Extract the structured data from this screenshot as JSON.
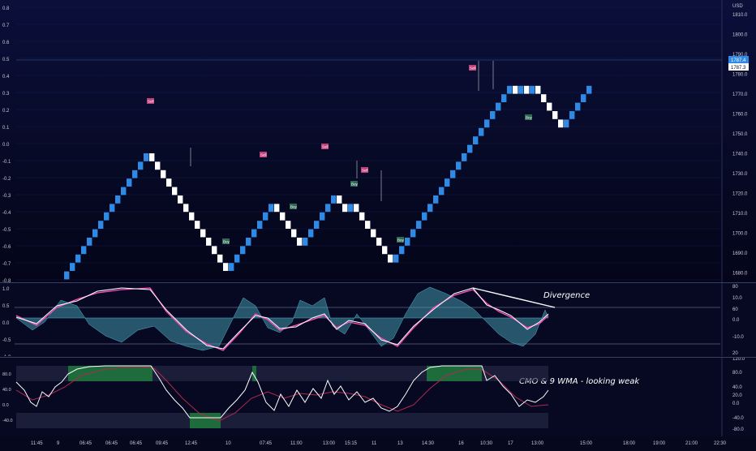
{
  "main": {
    "left_axis": [
      "0.8",
      "0.7",
      "0.6",
      "0.5",
      "0.4",
      "0.3",
      "0.2",
      "0.1",
      "0.0",
      "-0.1",
      "-0.2",
      "-0.3",
      "-0.4",
      "-0.5",
      "-0.6",
      "-0.7",
      "-0.8"
    ],
    "right_axis": [
      "USD",
      "1810.0",
      "1800.0",
      "1790.0",
      "1780.0",
      "1770.0",
      "1760.0",
      "1750.0",
      "1740.0",
      "1730.0",
      "1720.0",
      "1710.0",
      "1700.0",
      "1690.0",
      "1680.0"
    ],
    "price_tag": "1787.4",
    "price_tag2": "1787.3",
    "sell_label": "Sell",
    "buy_label": "Buy"
  },
  "oscillator": {
    "left_axis": [
      "1.0",
      "0.5",
      "0.0",
      "-0.5",
      "-1.0"
    ],
    "right_axis": [
      "80",
      "10.0",
      "60",
      "0.0",
      "-10.0",
      "20"
    ],
    "annotation": "Divergence"
  },
  "cmo": {
    "right_axis": [
      "120.0",
      "80.0",
      "40.0",
      "20.0",
      "0.0",
      "-40.0",
      "-80.0"
    ],
    "left_axis": [
      "80.0",
      "40.0",
      "0.0",
      "-40.0"
    ],
    "annotation": "CMO & 9 WMA - looking weak"
  },
  "time_axis": [
    "11:45",
    "9",
    "06:45",
    "06:45",
    "06:45",
    "09:45",
    "12:45",
    "10",
    "07:45",
    "11:00",
    "13:00",
    "15:15",
    "11",
    "13",
    "14:30",
    "16",
    "10:30",
    "17",
    "13:00",
    "15:00",
    "18:00",
    "19:00",
    "21:00",
    "22:30"
  ],
  "colors": {
    "up_brick": "#2f8ae5",
    "down_brick": "#ffffff",
    "sell_badge": "#c0407a",
    "buy_badge": "#2f6a55",
    "price_tag": "#2f8ae5",
    "histogram": "#4fb3c6",
    "line_pink": "#ff4fbf",
    "line_white": "#ffffff",
    "cmo_green": "#1f7a3c",
    "cmo_band": "#2a2d4a"
  }
}
